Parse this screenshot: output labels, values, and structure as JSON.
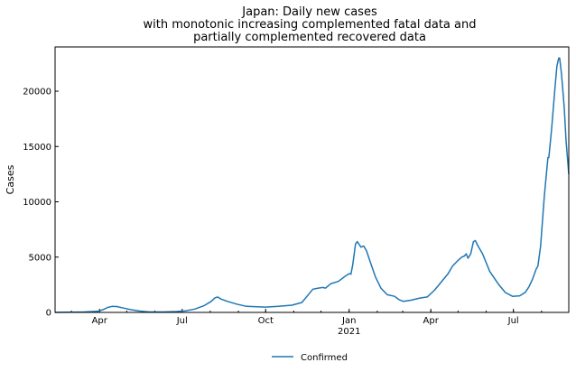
{
  "chart_data": {
    "type": "line",
    "title": [
      "Japan: Daily new cases",
      "with monotonic increasing complemented fatal data and",
      "partially complemented recovered data"
    ],
    "ylabel": "Cases",
    "xlabel": "",
    "ylim": [
      0,
      24000
    ],
    "xlim": [
      "2020-02-12",
      "2021-08-31"
    ],
    "grid": false,
    "legend_position": "below",
    "x_ticks": [
      {
        "date": "2020-04-01",
        "label": "Apr",
        "sublabel": ""
      },
      {
        "date": "2020-07-01",
        "label": "Jul",
        "sublabel": ""
      },
      {
        "date": "2020-10-01",
        "label": "Oct",
        "sublabel": ""
      },
      {
        "date": "2021-01-01",
        "label": "Jan",
        "sublabel": "2021"
      },
      {
        "date": "2021-04-01",
        "label": "Apr",
        "sublabel": ""
      },
      {
        "date": "2021-07-01",
        "label": "Jul",
        "sublabel": ""
      }
    ],
    "y_ticks": [
      0,
      5000,
      10000,
      15000,
      20000
    ],
    "series": [
      {
        "name": "Confirmed",
        "color": "#1f77b4",
        "points": [
          [
            "2020-02-12",
            0
          ],
          [
            "2020-03-01",
            20
          ],
          [
            "2020-03-15",
            40
          ],
          [
            "2020-03-30",
            100
          ],
          [
            "2020-04-05",
            250
          ],
          [
            "2020-04-10",
            450
          ],
          [
            "2020-04-15",
            550
          ],
          [
            "2020-04-20",
            530
          ],
          [
            "2020-04-28",
            380
          ],
          [
            "2020-05-05",
            250
          ],
          [
            "2020-05-15",
            120
          ],
          [
            "2020-05-25",
            50
          ],
          [
            "2020-06-10",
            40
          ],
          [
            "2020-06-25",
            80
          ],
          [
            "2020-07-05",
            150
          ],
          [
            "2020-07-15",
            300
          ],
          [
            "2020-07-25",
            600
          ],
          [
            "2020-08-02",
            1000
          ],
          [
            "2020-08-06",
            1300
          ],
          [
            "2020-08-09",
            1400
          ],
          [
            "2020-08-13",
            1200
          ],
          [
            "2020-08-20",
            1000
          ],
          [
            "2020-08-30",
            750
          ],
          [
            "2020-09-10",
            550
          ],
          [
            "2020-09-25",
            500
          ],
          [
            "2020-10-01",
            480
          ],
          [
            "2020-10-15",
            550
          ],
          [
            "2020-10-30",
            650
          ],
          [
            "2020-11-10",
            900
          ],
          [
            "2020-11-18",
            1700
          ],
          [
            "2020-11-22",
            2100
          ],
          [
            "2020-11-28",
            2200
          ],
          [
            "2020-12-03",
            2250
          ],
          [
            "2020-12-06",
            2200
          ],
          [
            "2020-12-12",
            2600
          ],
          [
            "2020-12-20",
            2800
          ],
          [
            "2020-12-28",
            3300
          ],
          [
            "2021-01-01",
            3500
          ],
          [
            "2021-01-03",
            3450
          ],
          [
            "2021-01-05",
            4300
          ],
          [
            "2021-01-08",
            6200
          ],
          [
            "2021-01-10",
            6400
          ],
          [
            "2021-01-14",
            5900
          ],
          [
            "2021-01-17",
            6000
          ],
          [
            "2021-01-20",
            5600
          ],
          [
            "2021-01-25",
            4400
          ],
          [
            "2021-01-30",
            3200
          ],
          [
            "2021-02-05",
            2200
          ],
          [
            "2021-02-12",
            1600
          ],
          [
            "2021-02-20",
            1450
          ],
          [
            "2021-02-25",
            1150
          ],
          [
            "2021-03-02",
            1000
          ],
          [
            "2021-03-10",
            1100
          ],
          [
            "2021-03-20",
            1300
          ],
          [
            "2021-03-28",
            1400
          ],
          [
            "2021-04-05",
            2000
          ],
          [
            "2021-04-12",
            2700
          ],
          [
            "2021-04-20",
            3500
          ],
          [
            "2021-04-25",
            4200
          ],
          [
            "2021-05-01",
            4700
          ],
          [
            "2021-05-05",
            5000
          ],
          [
            "2021-05-08",
            5100
          ],
          [
            "2021-05-10",
            5300
          ],
          [
            "2021-05-12",
            4900
          ],
          [
            "2021-05-15",
            5300
          ],
          [
            "2021-05-18",
            6400
          ],
          [
            "2021-05-20",
            6500
          ],
          [
            "2021-05-23",
            6000
          ],
          [
            "2021-05-28",
            5300
          ],
          [
            "2021-06-05",
            3700
          ],
          [
            "2021-06-15",
            2500
          ],
          [
            "2021-06-22",
            1800
          ],
          [
            "2021-06-30",
            1450
          ],
          [
            "2021-07-08",
            1500
          ],
          [
            "2021-07-14",
            1800
          ],
          [
            "2021-07-18",
            2300
          ],
          [
            "2021-07-22",
            3000
          ],
          [
            "2021-07-26",
            3900
          ],
          [
            "2021-07-28",
            4200
          ],
          [
            "2021-07-31",
            6000
          ],
          [
            "2021-08-04",
            10500
          ],
          [
            "2021-08-08",
            14000
          ],
          [
            "2021-08-09",
            14000
          ],
          [
            "2021-08-12",
            16500
          ],
          [
            "2021-08-16",
            20500
          ],
          [
            "2021-08-18",
            22300
          ],
          [
            "2021-08-20",
            23000
          ],
          [
            "2021-08-21",
            23000
          ],
          [
            "2021-08-23",
            21500
          ],
          [
            "2021-08-26",
            18500
          ],
          [
            "2021-08-28",
            15500
          ],
          [
            "2021-08-31",
            12500
          ]
        ]
      }
    ]
  }
}
